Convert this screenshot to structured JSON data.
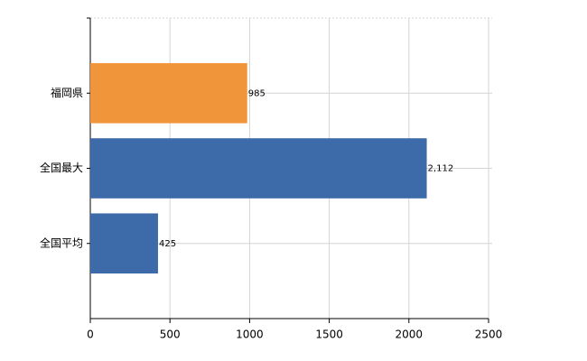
{
  "chart_data": {
    "type": "bar",
    "orientation": "horizontal",
    "categories": [
      "福岡県",
      "全国最大",
      "全国平均"
    ],
    "values": [
      985,
      2112,
      425
    ],
    "value_labels": [
      "985",
      "2,112",
      "425"
    ],
    "colors": [
      "#f0953a",
      "#3d6aa8",
      "#3d6aa8"
    ],
    "xlim": [
      0,
      2500
    ],
    "xticks": [
      0,
      500,
      1000,
      1500,
      2000,
      2500
    ],
    "grid": true
  }
}
